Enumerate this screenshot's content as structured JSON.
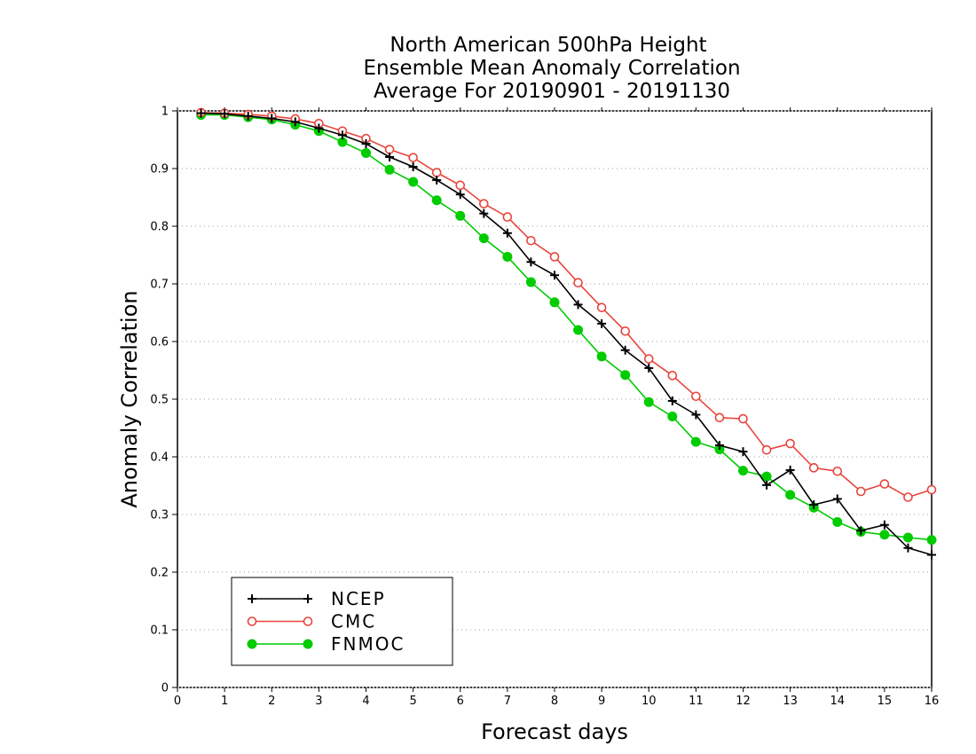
{
  "chart_data": {
    "type": "line",
    "title": [
      "North American 500hPa Height",
      "Ensemble Mean Anomaly Correlation",
      "Average For 20190901 - 20191130"
    ],
    "xlabel": "Forecast days",
    "ylabel": "Anomaly Correlation",
    "xlim": [
      0,
      16
    ],
    "ylim": [
      0,
      1
    ],
    "x_ticks": [
      "0",
      "1",
      "2",
      "3",
      "4",
      "5",
      "6",
      "7",
      "8",
      "9",
      "10",
      "11",
      "12",
      "13",
      "14",
      "15",
      "16"
    ],
    "y_ticks": [
      "0",
      "0.1",
      "0.2",
      "0.3",
      "0.4",
      "0.5",
      "0.6",
      "0.7",
      "0.8",
      "0.9",
      "1"
    ],
    "grid": true,
    "legend_position": "bottom-left",
    "x": [
      0.5,
      1,
      1.5,
      2,
      2.5,
      3,
      3.5,
      4,
      4.5,
      5,
      5.5,
      6,
      6.5,
      7,
      7.5,
      8,
      8.5,
      9,
      9.5,
      10,
      10.5,
      11,
      11.5,
      12,
      12.5,
      13,
      13.5,
      14,
      14.5,
      15,
      15.5,
      16
    ],
    "series": [
      {
        "name": "NCEP",
        "color": "#000000",
        "marker": "plus",
        "values": [
          0.996,
          0.995,
          0.991,
          0.987,
          0.981,
          0.97,
          0.958,
          0.943,
          0.92,
          0.903,
          0.88,
          0.855,
          0.822,
          0.788,
          0.738,
          0.715,
          0.664,
          0.631,
          0.585,
          0.554,
          0.497,
          0.473,
          0.42,
          0.409,
          0.351,
          0.377,
          0.317,
          0.327,
          0.272,
          0.282,
          0.242,
          0.23
        ]
      },
      {
        "name": "CMC",
        "color": "#e8453c",
        "marker": "open-circle",
        "values": [
          0.997,
          0.996,
          0.994,
          0.991,
          0.986,
          0.978,
          0.965,
          0.952,
          0.933,
          0.919,
          0.893,
          0.871,
          0.839,
          0.816,
          0.775,
          0.747,
          0.702,
          0.659,
          0.618,
          0.57,
          0.541,
          0.505,
          0.468,
          0.466,
          0.412,
          0.423,
          0.381,
          0.375,
          0.34,
          0.353,
          0.33,
          0.343
        ]
      },
      {
        "name": "FNMOC",
        "color": "#00cc00",
        "marker": "filled-circle",
        "values": [
          0.993,
          0.993,
          0.989,
          0.985,
          0.976,
          0.965,
          0.946,
          0.927,
          0.898,
          0.877,
          0.845,
          0.818,
          0.779,
          0.747,
          0.703,
          0.668,
          0.62,
          0.574,
          0.542,
          0.495,
          0.47,
          0.426,
          0.413,
          0.376,
          0.366,
          0.334,
          0.312,
          0.287,
          0.27,
          0.265,
          0.26,
          0.256
        ]
      }
    ]
  }
}
